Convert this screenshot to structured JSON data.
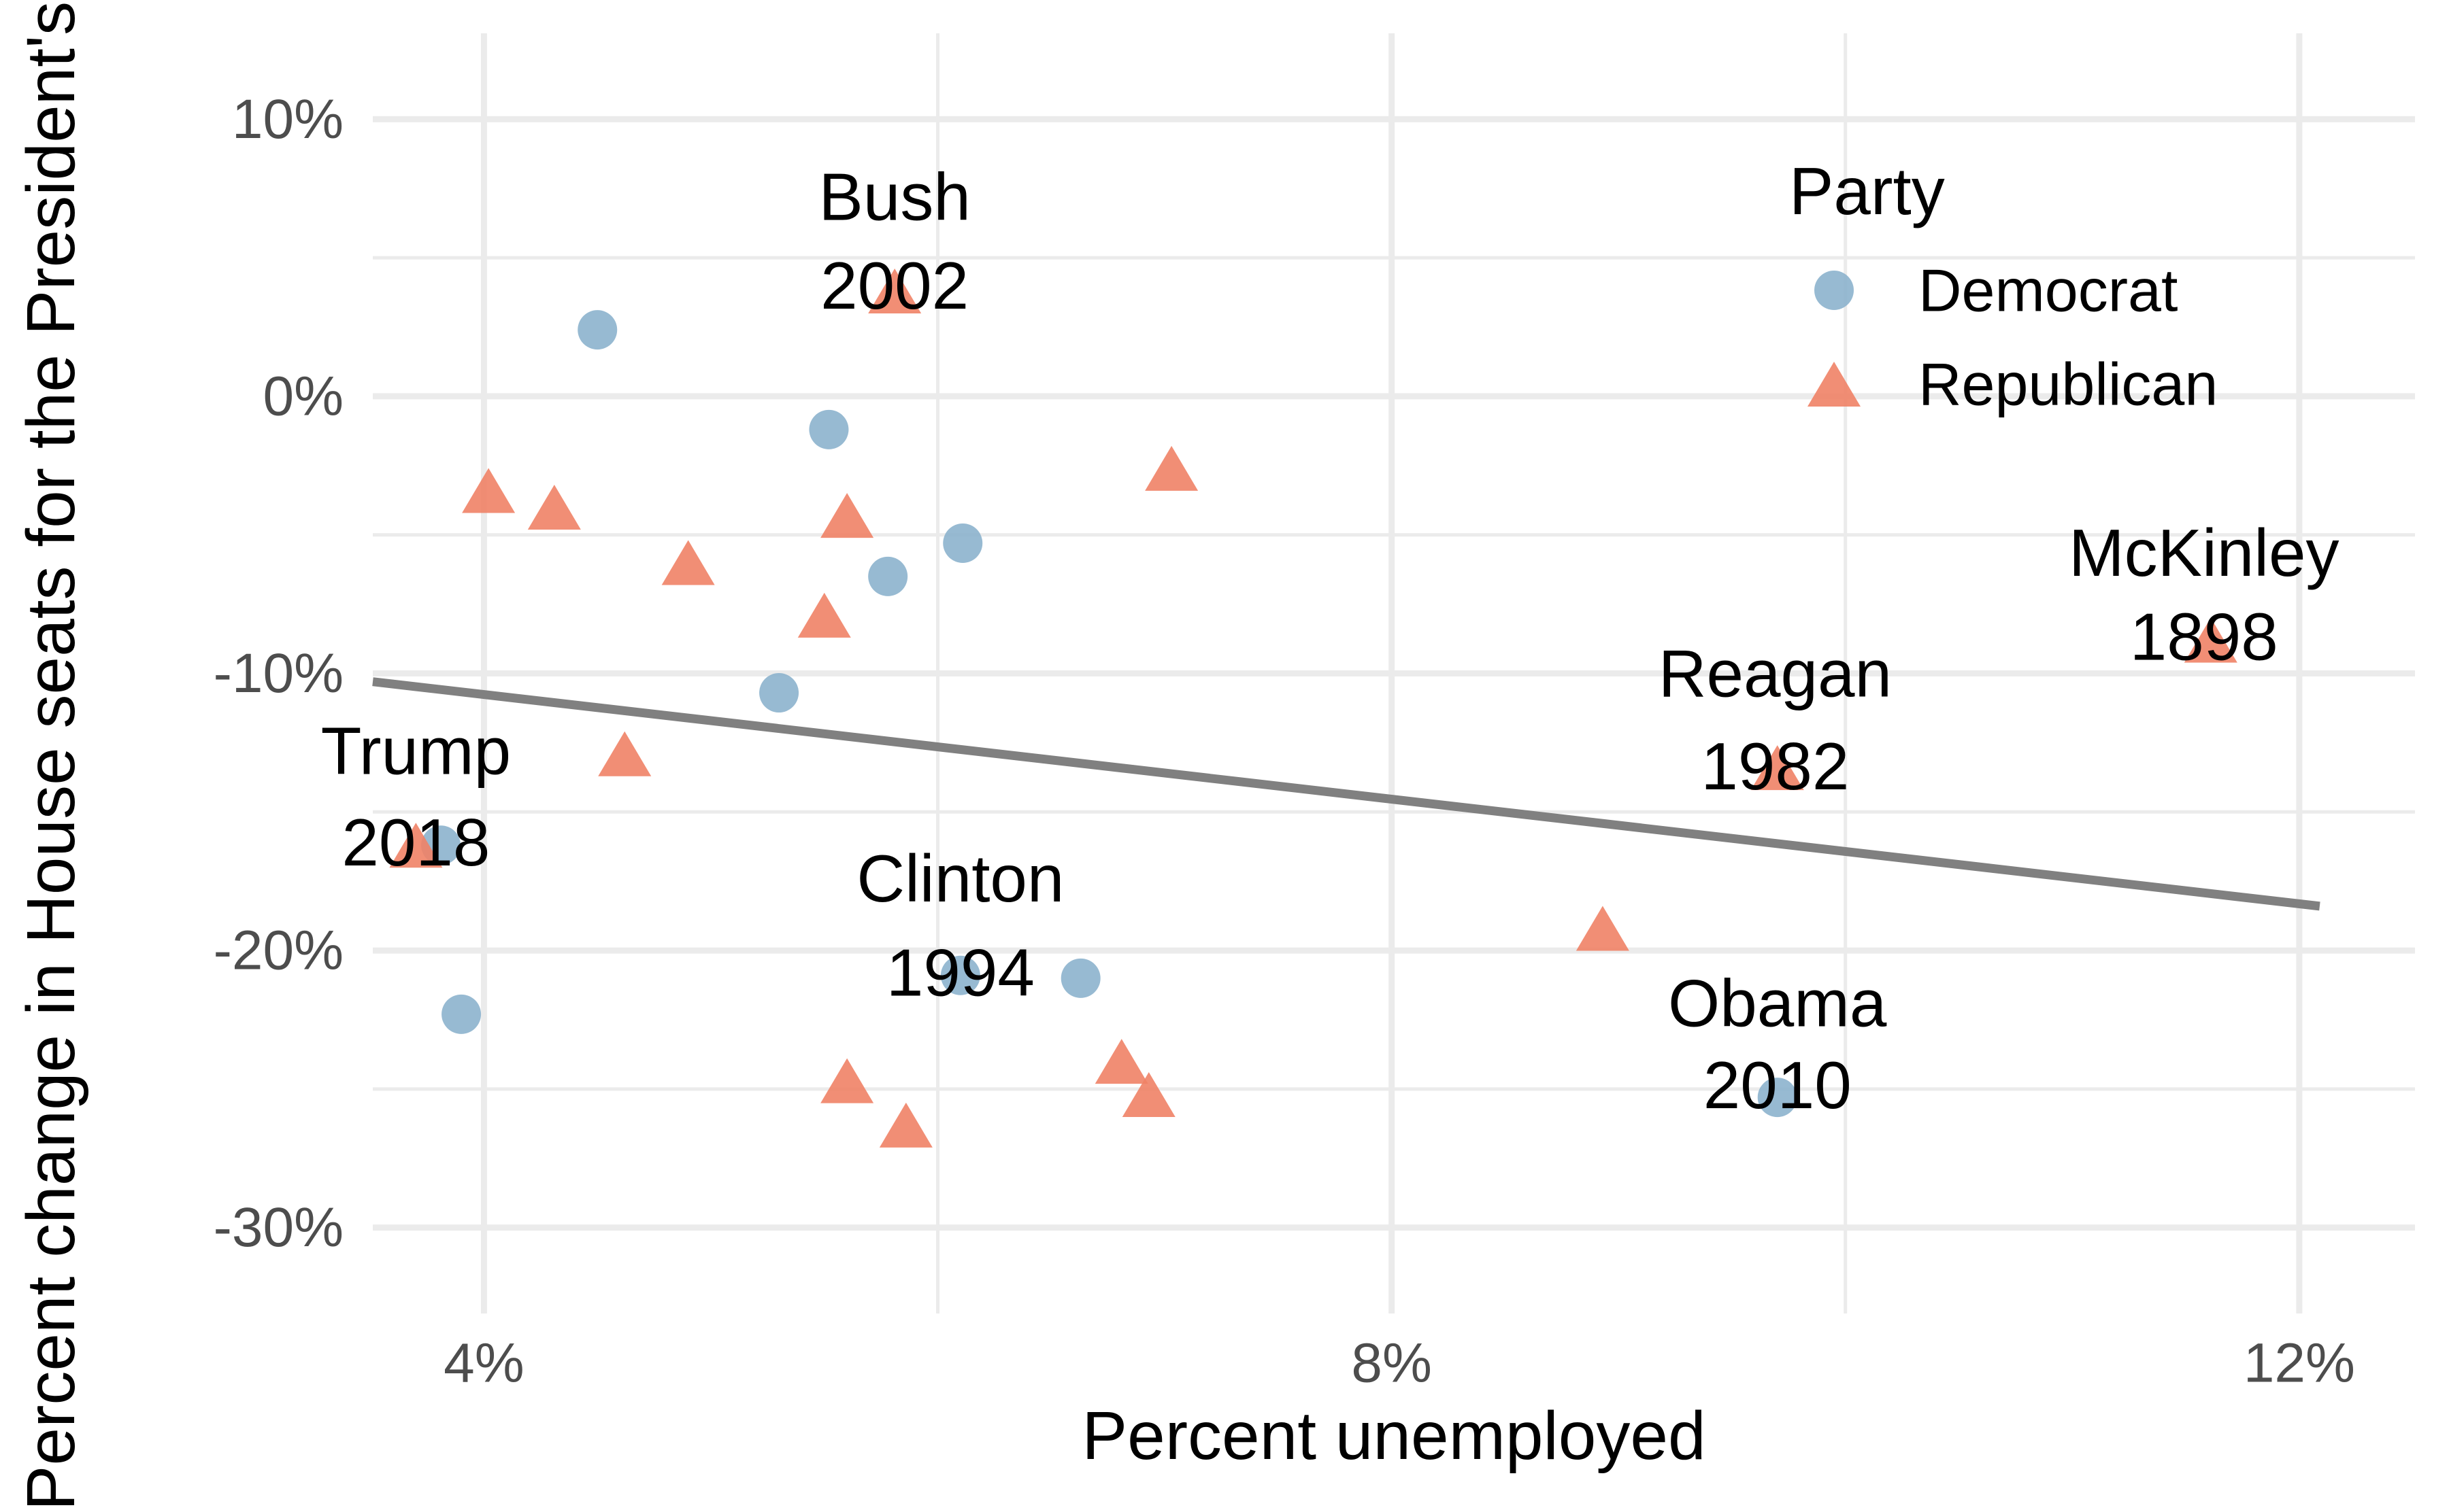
{
  "figure": {
    "x_axis_title": "Percent unemployed",
    "y_axis_title": "Percent change in House seats for the President's"
  },
  "legend": {
    "title": "Party",
    "items": [
      {
        "label": "Democrat",
        "marker": "circle",
        "color": "#8CB3CD"
      },
      {
        "label": "Republican",
        "marker": "triangle",
        "color": "#F08266"
      }
    ]
  },
  "colors": {
    "background": "#FFFFFF",
    "gridline": "#EBEBEB",
    "tick_text": "#4D4D4D",
    "text": "#000000",
    "trend": "#808080",
    "democrat": "#8CB3CD",
    "republican": "#F08266"
  },
  "chart_data": {
    "type": "scatter",
    "title": "",
    "xlabel": "Percent unemployed",
    "ylabel": "Percent change in House seats for the President's",
    "xlim": [
      3.51,
      12.51
    ],
    "ylim": [
      -33.1,
      13.1
    ],
    "grid": true,
    "legend_position": "inside top-right",
    "x_ticks": {
      "values": [
        4,
        8,
        12
      ],
      "labels": [
        "4%",
        "8%",
        "12%"
      ],
      "minor": [
        6,
        10
      ]
    },
    "y_ticks": {
      "values": [
        10,
        0,
        -10,
        -20,
        -30
      ],
      "labels": [
        "10%",
        "0%",
        "-10%",
        "-20%",
        "-30%"
      ],
      "minor": [
        5,
        -5,
        -15,
        -25
      ]
    },
    "series": [
      {
        "name": "Democrat",
        "marker": "circle",
        "color": "#8CB3CD",
        "points": [
          [
            4.5,
            2.4
          ],
          [
            5.52,
            -1.2
          ],
          [
            6.11,
            -5.3
          ],
          [
            5.78,
            -6.5
          ],
          [
            5.3,
            -10.7
          ],
          [
            3.81,
            -16.2
          ],
          [
            3.9,
            -22.3
          ],
          [
            6.1,
            -20.9
          ],
          [
            6.63,
            -21.0
          ],
          [
            9.7,
            -25.3
          ]
        ]
      },
      {
        "name": "Republican",
        "marker": "triangle",
        "color": "#F08266",
        "points": [
          [
            5.81,
            3.8
          ],
          [
            7.03,
            -2.6
          ],
          [
            4.02,
            -3.4
          ],
          [
            4.31,
            -4.0
          ],
          [
            5.6,
            -4.3
          ],
          [
            4.9,
            -6.0
          ],
          [
            5.5,
            -7.9
          ],
          [
            4.62,
            -12.9
          ],
          [
            9.7,
            -13.4
          ],
          [
            3.7,
            -16.2
          ],
          [
            8.93,
            -19.2
          ],
          [
            5.6,
            -24.7
          ],
          [
            6.81,
            -24.0
          ],
          [
            6.93,
            -25.2
          ],
          [
            5.86,
            -26.3
          ],
          [
            11.61,
            -8.8
          ]
        ]
      }
    ],
    "trend_line": {
      "x1": 3.51,
      "y1": -10.3,
      "x2": 12.09,
      "y2": -18.4,
      "color": "#808080"
    },
    "annotations": [
      {
        "name": "Bush",
        "year": "2002",
        "x": 5.81,
        "name_y": 7.2,
        "year_y": 4.0
      },
      {
        "name": "Trump",
        "year": "2018",
        "x": 3.7,
        "name_y": -12.8,
        "year_y": -16.1
      },
      {
        "name": "Clinton",
        "year": "1994",
        "x": 6.1,
        "name_y": -17.4,
        "year_y": -20.8
      },
      {
        "name": "Reagan",
        "year": "1982",
        "x": 9.69,
        "name_y": -10.0,
        "year_y": -13.35
      },
      {
        "name": "Obama",
        "year": "2010",
        "x": 9.7,
        "name_y": -21.9,
        "year_y": -24.85
      },
      {
        "name": "McKinley",
        "year": "1898",
        "x": 11.58,
        "name_y": -5.65,
        "year_y": -8.68
      }
    ]
  }
}
